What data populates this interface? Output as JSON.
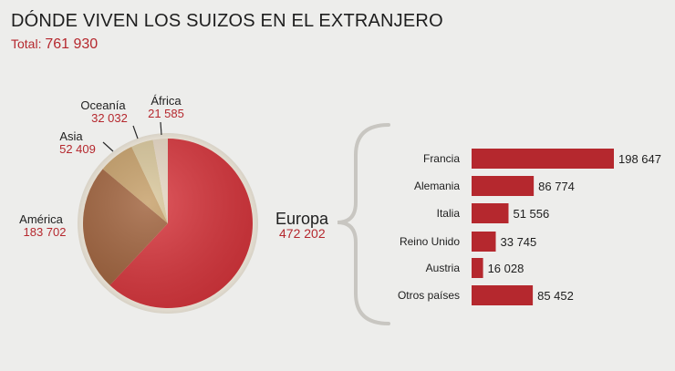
{
  "header": {
    "title": "DÓNDE VIVEN LOS SUIZOS EN EL EXTRANJERO",
    "total_label": "Total:",
    "total_value": "761 930"
  },
  "colors": {
    "accent": "#b5282e",
    "europa": "#d8353c",
    "america": "#a0623c",
    "asia": "#c69f68",
    "oceania": "#d9c79b",
    "africa": "#e7d8c4",
    "bar": "#b5282e",
    "brace": "#c8c6c1"
  },
  "chart_data": [
    {
      "type": "pie",
      "categories": [
        "Europa",
        "América",
        "Asia",
        "Oceanía",
        "África"
      ],
      "values": [
        472202,
        183702,
        52409,
        32032,
        21585
      ],
      "value_labels": [
        "472 202",
        "183 702",
        "52 409",
        "32 032",
        "21 585"
      ]
    },
    {
      "type": "bar",
      "orientation": "horizontal",
      "categories": [
        "Francia",
        "Alemania",
        "Italia",
        "Reino Unido",
        "Austria",
        "Otros países"
      ],
      "values": [
        198647,
        86774,
        51556,
        33745,
        16028,
        85452
      ],
      "value_labels": [
        "198 647",
        "86 774",
        "51 556",
        "33 745",
        "16 028",
        "85 452"
      ]
    }
  ]
}
